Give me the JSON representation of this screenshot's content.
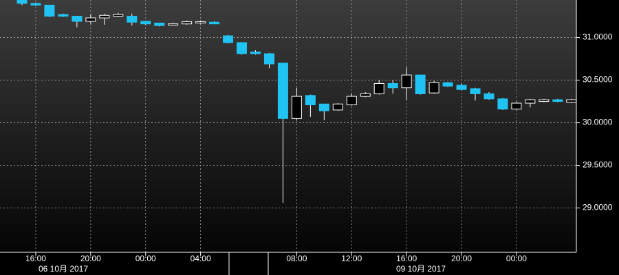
{
  "chart_data": {
    "type": "candlestick",
    "categories": [
      null,
      "16:00",
      null,
      null,
      null,
      "20:00",
      null,
      null,
      null,
      "00:00",
      null,
      null,
      null,
      "04:00",
      null,
      null,
      null,
      null,
      null,
      null,
      "08:00",
      null,
      null,
      null,
      "12:00",
      null,
      null,
      null,
      "16:00",
      null,
      null,
      null,
      "20:00",
      null,
      null,
      null,
      "00:00",
      null,
      null,
      null,
      null
    ],
    "open": [
      31.44,
      31.4,
      31.38,
      31.27,
      31.25,
      31.19,
      31.23,
      31.25,
      31.25,
      31.19,
      31.17,
      31.145,
      31.16,
      31.17,
      31.18,
      31.02,
      30.94,
      30.83,
      30.81,
      30.7,
      30.05,
      30.32,
      30.22,
      30.15,
      30.21,
      30.31,
      30.34,
      30.46,
      30.41,
      30.56,
      30.35,
      30.47,
      30.44,
      30.4,
      30.34,
      30.28,
      30.16,
      30.23,
      30.25,
      30.27,
      30.24
    ],
    "high": [
      31.44,
      31.41,
      31.38,
      31.28,
      31.25,
      31.27,
      31.28,
      31.29,
      31.28,
      31.19,
      31.17,
      31.17,
      31.2,
      31.2,
      31.19,
      31.03,
      30.94,
      30.85,
      30.82,
      30.7,
      30.41,
      30.33,
      30.22,
      30.23,
      30.34,
      30.36,
      30.5,
      30.5,
      30.65,
      30.56,
      30.49,
      30.48,
      30.46,
      30.41,
      30.36,
      30.29,
      30.25,
      30.28,
      30.28,
      30.28,
      30.28
    ],
    "low": [
      31.38,
      31.37,
      31.24,
      31.24,
      31.12,
      31.16,
      31.15,
      31.24,
      31.14,
      31.15,
      31.13,
      31.14,
      31.15,
      31.16,
      31.16,
      30.93,
      30.8,
      30.8,
      30.64,
      29.06,
      30.03,
      30.07,
      30.03,
      30.14,
      30.2,
      30.3,
      30.33,
      30.34,
      30.27,
      30.33,
      30.34,
      30.42,
      30.38,
      30.26,
      30.27,
      30.15,
      30.15,
      30.18,
      30.24,
      30.24,
      30.23
    ],
    "close": [
      31.4,
      31.38,
      31.25,
      31.25,
      31.19,
      31.23,
      31.26,
      31.27,
      31.18,
      31.16,
      31.14,
      31.16,
      31.185,
      31.185,
      31.16,
      30.94,
      30.81,
      30.81,
      30.69,
      30.05,
      30.31,
      30.21,
      30.14,
      30.22,
      30.31,
      30.34,
      30.46,
      30.41,
      30.56,
      30.34,
      30.47,
      30.43,
      30.39,
      30.34,
      30.28,
      30.16,
      30.23,
      30.27,
      30.27,
      30.25,
      30.27
    ],
    "up_color": "#000000",
    "down_color": "#20c4f4",
    "date_labels": [
      "06 10月 2017",
      "09 10月 2017"
    ],
    "ylim": [
      28.48,
      31.44
    ],
    "yticks": [
      {
        "value": 29,
        "label": "29.0000"
      },
      {
        "value": 29.5,
        "label": "29.5000"
      },
      {
        "value": 30,
        "label": "30.0000"
      },
      {
        "value": 30.5,
        "label": "30.5000"
      },
      {
        "value": 31,
        "label": "31.0000"
      }
    ],
    "grid": true
  }
}
